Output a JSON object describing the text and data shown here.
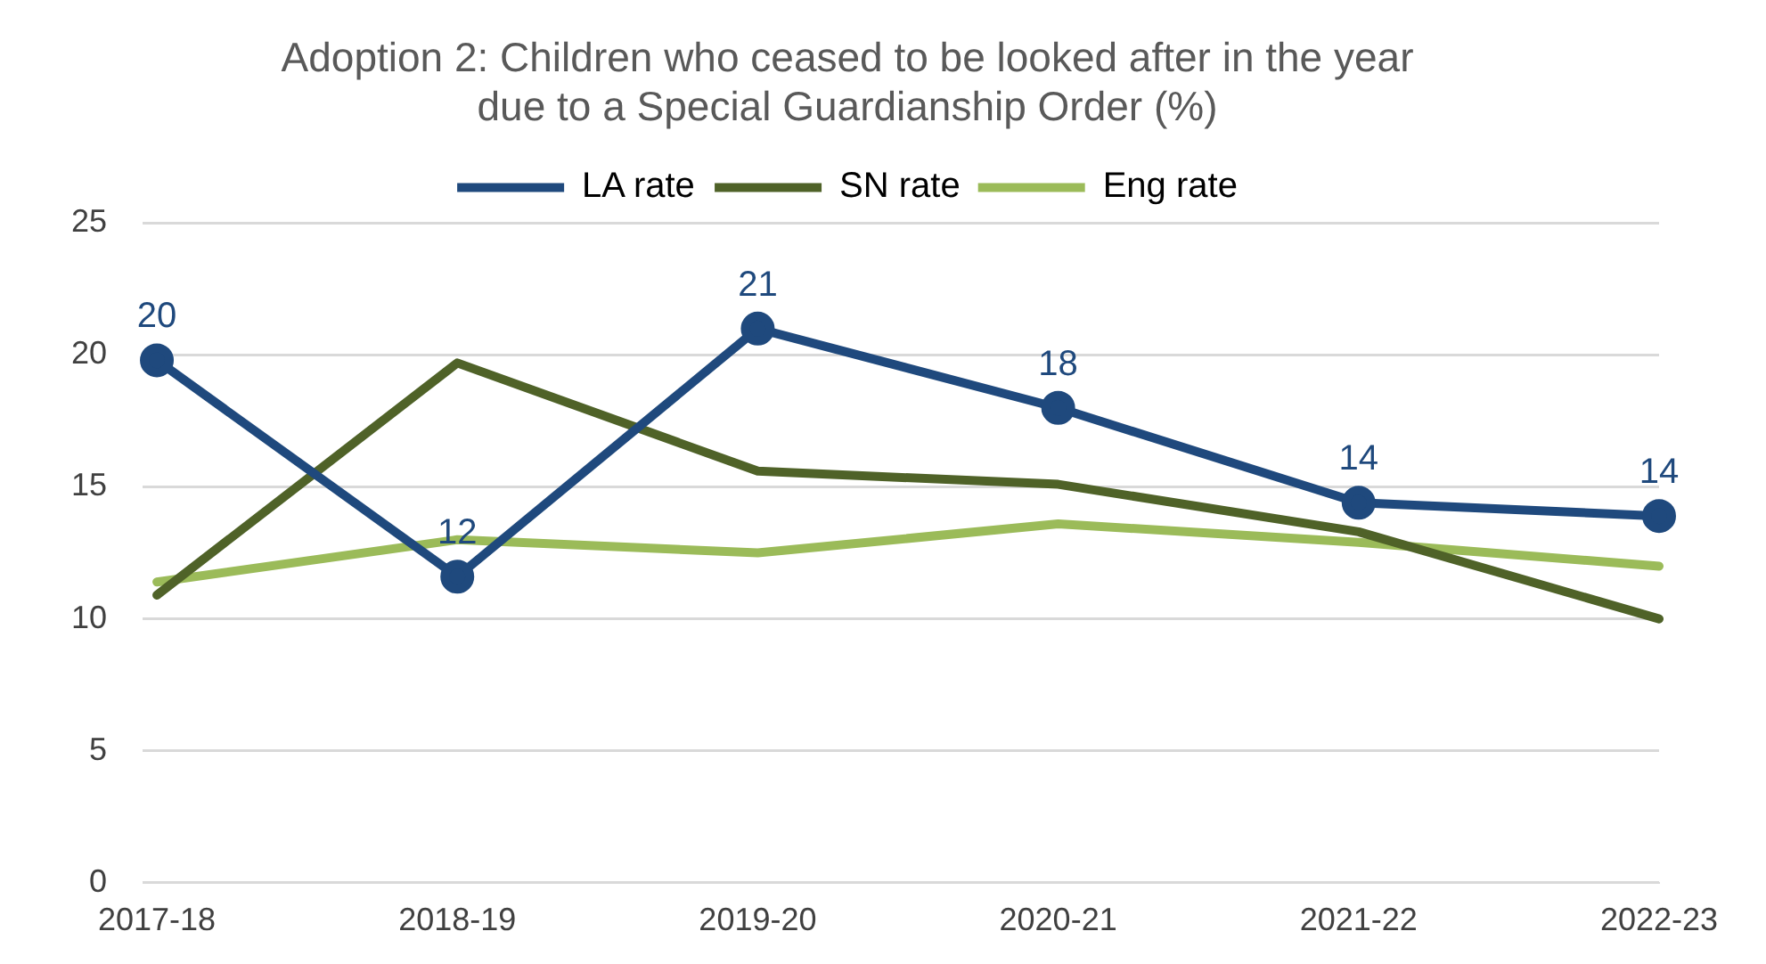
{
  "chart_data": {
    "type": "line",
    "title": "Adoption 2: Children who ceased to be looked after in the year due to a Special Guardianship Order (%)",
    "categories": [
      "2017-18",
      "2018-19",
      "2019-20",
      "2020-21",
      "2021-22",
      "2022-23"
    ],
    "series": [
      {
        "name": "LA rate",
        "color": "#1f497d",
        "values": [
          19.8,
          11.6,
          21.0,
          18.0,
          14.4,
          13.9
        ],
        "marker": "circle",
        "value_labels": [
          "20",
          "12",
          "21",
          "18",
          "14",
          "14"
        ]
      },
      {
        "name": "SN rate",
        "color": "#4f6228",
        "values": [
          10.9,
          19.7,
          15.6,
          15.1,
          13.3,
          10.0
        ],
        "marker": "none"
      },
      {
        "name": "Eng rate",
        "color": "#9bbb59",
        "values": [
          11.4,
          13.0,
          12.5,
          13.6,
          12.9,
          12.0
        ],
        "marker": "none"
      }
    ],
    "ylim": [
      0,
      25
    ],
    "yticks": [
      0,
      5,
      10,
      15,
      20,
      25
    ],
    "grid": "y",
    "legend": "top"
  }
}
